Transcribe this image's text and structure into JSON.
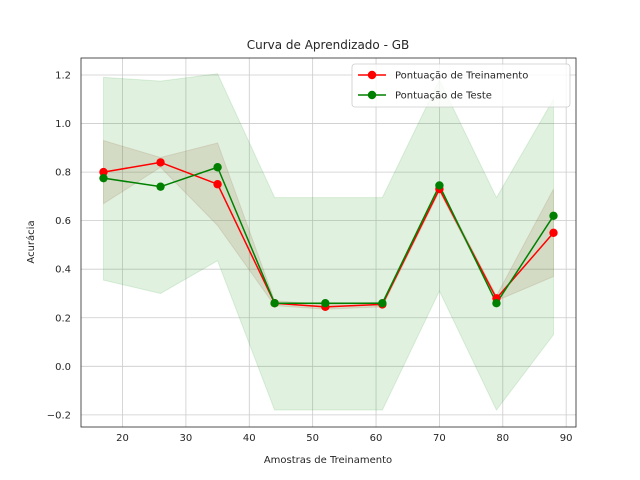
{
  "chart_data": {
    "type": "line",
    "title": "Curva de Aprendizado - GB",
    "xlabel": "Amostras de Treinamento",
    "ylabel": "Acurácia",
    "xlim": [
      13.45,
      91.55
    ],
    "ylim": [
      -0.25,
      1.27
    ],
    "xticks": [
      20,
      30,
      40,
      50,
      60,
      70,
      80,
      90
    ],
    "yticks": [
      -0.2,
      0.0,
      0.2,
      0.4,
      0.6,
      0.8,
      1.0,
      1.2
    ],
    "xtick_labels": [
      "20",
      "30",
      "40",
      "50",
      "60",
      "70",
      "80",
      "90"
    ],
    "ytick_labels": [
      "−0.2",
      "0.0",
      "0.2",
      "0.4",
      "0.6",
      "0.8",
      "1.0",
      "1.2"
    ],
    "grid": true,
    "legend_position": "top-right",
    "x": [
      17,
      26,
      35,
      44,
      52,
      61,
      70,
      79,
      88
    ],
    "series": [
      {
        "name": "Pontuação de Treinamento",
        "color": "#ff0000",
        "band_color": "#a0522d",
        "values": [
          0.8,
          0.84,
          0.75,
          0.26,
          0.245,
          0.255,
          0.73,
          0.28,
          0.55
        ],
        "band_lower": [
          0.67,
          0.82,
          0.58,
          0.25,
          0.235,
          0.245,
          0.72,
          0.27,
          0.37
        ],
        "band_upper": [
          0.93,
          0.86,
          0.92,
          0.27,
          0.255,
          0.265,
          0.74,
          0.29,
          0.73
        ]
      },
      {
        "name": "Pontuação de Teste",
        "color": "#008000",
        "band_color": "#2ca02c",
        "values": [
          0.775,
          0.74,
          0.82,
          0.26,
          0.26,
          0.26,
          0.745,
          0.26,
          0.62
        ],
        "band_lower": [
          0.355,
          0.3,
          0.435,
          -0.18,
          -0.18,
          -0.18,
          0.31,
          -0.18,
          0.13
        ],
        "band_upper": [
          1.19,
          1.175,
          1.205,
          0.695,
          0.695,
          0.695,
          1.18,
          0.695,
          1.1
        ]
      }
    ]
  }
}
